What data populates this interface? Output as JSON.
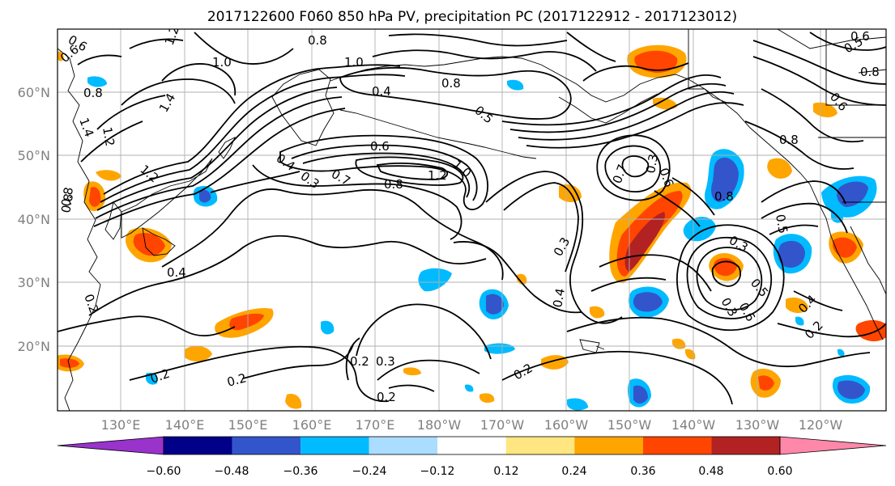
{
  "title": "2017122600 F060 850 hPa PV, precipitation PC (2017122912 - 2017123012)",
  "lat_labels": [
    "60°N",
    "50°N",
    "40°N",
    "30°N",
    "20°N"
  ],
  "lon_labels": [
    "130°E",
    "140°E",
    "150°E",
    "160°E",
    "170°E",
    "180°W",
    "170°W",
    "160°W",
    "150°W",
    "140°W",
    "130°W",
    "120°W"
  ],
  "colorbar": {
    "ticks": [
      "−0.60",
      "−0.48",
      "−0.36",
      "−0.24",
      "−0.12",
      "0.12",
      "0.24",
      "0.36",
      "0.48",
      "0.60"
    ],
    "colors": [
      "#9933cc",
      "#000088",
      "#3355cc",
      "#00bbff",
      "#aaddff",
      "#ffffff",
      "#ffe680",
      "#ffa500",
      "#ff4500",
      "#b22222",
      "#ff88aa"
    ]
  },
  "contour_labels": [
    "1.2",
    "1.0",
    "0.8",
    "1.0",
    "1.4",
    "0.8",
    "0.4",
    "0.5",
    "0.8",
    "1.2",
    "1.4",
    "1.2",
    "0.6",
    "0.8",
    "0.6",
    "0.4",
    "0.3",
    "0.6",
    "0.7",
    "0.8",
    "1.2",
    "1.0",
    "0.8",
    "0.4",
    "0.2",
    "0.3",
    "0.4",
    "0.3",
    "0.7",
    "0.6",
    "0.8",
    "0.3",
    "0.5",
    "0.3",
    "0.5",
    "0.6",
    "0.4",
    "0.2",
    "0.2",
    "0.3",
    "0.2",
    "0.2",
    "0.2",
    "0.2",
    "0.8",
    "0.6",
    "0.8",
    "0.5",
    "0.6"
  ]
}
